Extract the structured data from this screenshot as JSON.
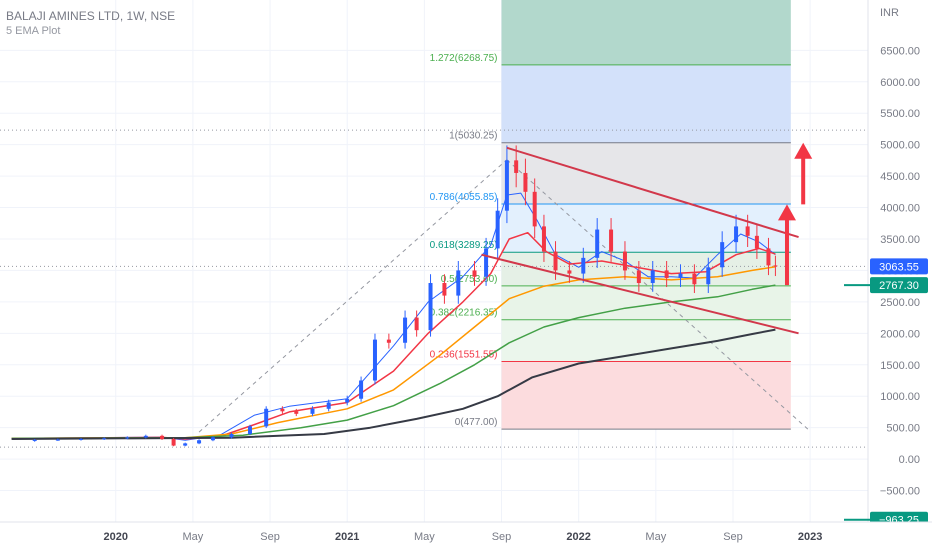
{
  "header": {
    "title": "BALAJI AMINES LTD, 1W, NSE",
    "indicator": "5 EMA Plot"
  },
  "chart_data": {
    "type": "candlestick",
    "y_axis": {
      "unit_label": "INR",
      "ticks": [
        "6500.00",
        "6000.00",
        "5500.00",
        "5000.00",
        "4500.00",
        "4000.00",
        "3500.00",
        "3000.00",
        "2500.00",
        "2000.00",
        "1500.00",
        "1000.00",
        "500.00",
        "0.00",
        "−500.00"
      ],
      "tick_values": [
        6500,
        6000,
        5500,
        5000,
        4500,
        4000,
        3500,
        3000,
        2500,
        2000,
        1500,
        1000,
        500,
        0,
        -500
      ],
      "range": [
        -1000,
        7300
      ]
    },
    "x_axis": {
      "labels": [
        "2020",
        "May",
        "Sep",
        "2021",
        "May",
        "Sep",
        "2022",
        "May",
        "Sep",
        "2023"
      ],
      "label_dates": [
        "2020-01",
        "2020-05",
        "2020-09",
        "2021-01",
        "2021-05",
        "2021-09",
        "2022-01",
        "2022-05",
        "2022-09",
        "2023-01"
      ],
      "range": [
        "2019-07",
        "2023-04"
      ]
    },
    "price_labels": [
      {
        "text": "3063.55",
        "value": 3063.55,
        "color": "#2962ff"
      },
      {
        "text": "2767.30",
        "value": 2767.3,
        "color": "#089981"
      },
      {
        "text": "−963.25",
        "value": -963.25,
        "color": "#089981"
      }
    ],
    "fibonacci": {
      "range_dates": [
        "2021-09",
        "2022-12"
      ],
      "levels": [
        {
          "label": "1.272(6268.75)",
          "ratio": 1.272,
          "value": 6268.75,
          "color": "#4caf50"
        },
        {
          "label": "1(5030.25)",
          "ratio": 1,
          "value": 5030.25,
          "color": "#787b86"
        },
        {
          "label": "0.786(4055.85)",
          "ratio": 0.786,
          "value": 4055.85,
          "color": "#2196f3"
        },
        {
          "label": "0.618(3289.25)",
          "ratio": 0.618,
          "value": 3289.25,
          "color": "#089981"
        },
        {
          "label": "0.5(2753.60)",
          "ratio": 0.5,
          "value": 2753.6,
          "color": "#4caf50"
        },
        {
          "label": "0.382(2216.35)",
          "ratio": 0.382,
          "value": 2216.35,
          "color": "#4caf50"
        },
        {
          "label": "0.236(1551.55)",
          "ratio": 0.236,
          "value": 1551.55,
          "color": "#f23645"
        },
        {
          "label": "0(477.00)",
          "ratio": 0,
          "value": 477,
          "color": "#787b86"
        }
      ],
      "zones": [
        {
          "from": 6268.75,
          "to": 7300,
          "color": "#b2d8cc"
        },
        {
          "from": 5030.25,
          "to": 6268.75,
          "color": "#d3e1fa"
        },
        {
          "from": 4055.85,
          "to": 5030.25,
          "color": "#e6e6e9"
        },
        {
          "from": 3289.25,
          "to": 4055.85,
          "color": "#e3f0fd"
        },
        {
          "from": 2753.6,
          "to": 3289.25,
          "color": "#e5f0e6"
        },
        {
          "from": 2216.35,
          "to": 2753.6,
          "color": "#e8f4e8"
        },
        {
          "from": 1551.55,
          "to": 2216.35,
          "color": "#ebf6ec"
        },
        {
          "from": 477,
          "to": 1551.55,
          "color": "#fcdcde"
        }
      ]
    },
    "closes": [
      [
        2019.55,
        290
      ],
      [
        2019.65,
        305
      ],
      [
        2019.75,
        310
      ],
      [
        2019.85,
        320
      ],
      [
        2019.95,
        330
      ],
      [
        2020.05,
        345
      ],
      [
        2020.13,
        370
      ],
      [
        2020.2,
        320
      ],
      [
        2020.25,
        215
      ],
      [
        2020.3,
        250
      ],
      [
        2020.36,
        300
      ],
      [
        2020.42,
        345
      ],
      [
        2020.5,
        400
      ],
      [
        2020.58,
        520
      ],
      [
        2020.65,
        800
      ],
      [
        2020.72,
        760
      ],
      [
        2020.78,
        720
      ],
      [
        2020.85,
        800
      ],
      [
        2020.92,
        900
      ],
      [
        2021.0,
        960
      ],
      [
        2021.06,
        1250
      ],
      [
        2021.12,
        1900
      ],
      [
        2021.18,
        1850
      ],
      [
        2021.25,
        2250
      ],
      [
        2021.3,
        2050
      ],
      [
        2021.36,
        2800
      ],
      [
        2021.42,
        2600
      ],
      [
        2021.48,
        3000
      ],
      [
        2021.55,
        2900
      ],
      [
        2021.6,
        3350
      ],
      [
        2021.65,
        3950
      ],
      [
        2021.69,
        4750
      ],
      [
        2021.73,
        4550
      ],
      [
        2021.77,
        4250
      ],
      [
        2021.81,
        3700
      ],
      [
        2021.85,
        3300
      ],
      [
        2021.9,
        3000
      ],
      [
        2021.96,
        2950
      ],
      [
        2022.02,
        3200
      ],
      [
        2022.08,
        3650
      ],
      [
        2022.14,
        3300
      ],
      [
        2022.2,
        3000
      ],
      [
        2022.26,
        2800
      ],
      [
        2022.32,
        3000
      ],
      [
        2022.38,
        2880
      ],
      [
        2022.44,
        2950
      ],
      [
        2022.5,
        2780
      ],
      [
        2022.56,
        3050
      ],
      [
        2022.62,
        3450
      ],
      [
        2022.68,
        3700
      ],
      [
        2022.73,
        3550
      ],
      [
        2022.77,
        3350
      ],
      [
        2022.82,
        3080
      ],
      [
        2022.85,
        3064
      ]
    ],
    "emas": [
      {
        "color": "#2962ff",
        "width": 1,
        "points": [
          [
            2019.55,
            330
          ],
          [
            2020.2,
            350
          ],
          [
            2020.3,
            300
          ],
          [
            2020.45,
            380
          ],
          [
            2020.6,
            700
          ],
          [
            2020.75,
            840
          ],
          [
            2021.0,
            960
          ],
          [
            2021.2,
            1800
          ],
          [
            2021.35,
            2500
          ],
          [
            2021.5,
            2900
          ],
          [
            2021.62,
            3400
          ],
          [
            2021.69,
            4200
          ],
          [
            2021.75,
            4230
          ],
          [
            2021.82,
            3800
          ],
          [
            2021.9,
            3250
          ],
          [
            2022.0,
            3050
          ],
          [
            2022.1,
            3300
          ],
          [
            2022.2,
            3150
          ],
          [
            2022.3,
            2900
          ],
          [
            2022.4,
            2900
          ],
          [
            2022.5,
            2880
          ],
          [
            2022.6,
            3250
          ],
          [
            2022.7,
            3580
          ],
          [
            2022.78,
            3450
          ],
          [
            2022.85,
            3250
          ]
        ]
      },
      {
        "color": "#f23645",
        "width": 1.5,
        "points": [
          [
            2019.55,
            330
          ],
          [
            2020.2,
            345
          ],
          [
            2020.3,
            320
          ],
          [
            2020.45,
            360
          ],
          [
            2020.6,
            550
          ],
          [
            2020.75,
            750
          ],
          [
            2021.0,
            900
          ],
          [
            2021.2,
            1400
          ],
          [
            2021.35,
            2000
          ],
          [
            2021.5,
            2500
          ],
          [
            2021.62,
            2950
          ],
          [
            2021.7,
            3500
          ],
          [
            2021.78,
            3600
          ],
          [
            2021.86,
            3300
          ],
          [
            2021.96,
            3100
          ],
          [
            2022.1,
            3150
          ],
          [
            2022.25,
            3050
          ],
          [
            2022.4,
            2950
          ],
          [
            2022.55,
            2980
          ],
          [
            2022.68,
            3250
          ],
          [
            2022.78,
            3350
          ],
          [
            2022.85,
            3260
          ]
        ]
      },
      {
        "color": "#ff9800",
        "width": 1.5,
        "points": [
          [
            2019.55,
            330
          ],
          [
            2020.3,
            340
          ],
          [
            2020.5,
            400
          ],
          [
            2020.7,
            580
          ],
          [
            2021.0,
            800
          ],
          [
            2021.2,
            1100
          ],
          [
            2021.4,
            1650
          ],
          [
            2021.55,
            2100
          ],
          [
            2021.7,
            2550
          ],
          [
            2021.85,
            2750
          ],
          [
            2022.0,
            2850
          ],
          [
            2022.2,
            2900
          ],
          [
            2022.4,
            2850
          ],
          [
            2022.6,
            2900
          ],
          [
            2022.75,
            3000
          ],
          [
            2022.85,
            3060
          ]
        ]
      },
      {
        "color": "#43a047",
        "width": 1.5,
        "points": [
          [
            2019.55,
            330
          ],
          [
            2020.3,
            340
          ],
          [
            2020.55,
            380
          ],
          [
            2020.8,
            500
          ],
          [
            2021.0,
            620
          ],
          [
            2021.2,
            850
          ],
          [
            2021.4,
            1200
          ],
          [
            2021.55,
            1500
          ],
          [
            2021.7,
            1850
          ],
          [
            2021.85,
            2100
          ],
          [
            2022.0,
            2250
          ],
          [
            2022.2,
            2400
          ],
          [
            2022.4,
            2500
          ],
          [
            2022.6,
            2580
          ],
          [
            2022.75,
            2700
          ],
          [
            2022.85,
            2767.3
          ]
        ]
      },
      {
        "color": "#363a45",
        "width": 2,
        "points": [
          [
            2019.55,
            320
          ],
          [
            2020.5,
            340
          ],
          [
            2020.9,
            400
          ],
          [
            2021.1,
            500
          ],
          [
            2021.3,
            640
          ],
          [
            2021.5,
            800
          ],
          [
            2021.65,
            1000
          ],
          [
            2021.8,
            1300
          ],
          [
            2022.0,
            1520
          ],
          [
            2022.2,
            1640
          ],
          [
            2022.4,
            1760
          ],
          [
            2022.6,
            1880
          ],
          [
            2022.75,
            1990
          ],
          [
            2022.85,
            2060
          ]
        ]
      }
    ],
    "trendlines": [
      {
        "color": "#d2384b",
        "width": 2,
        "from": [
          2021.69,
          4950
        ],
        "to": [
          2022.95,
          3530
        ]
      },
      {
        "color": "#d2384b",
        "width": 2,
        "from": [
          2021.58,
          3250
        ],
        "to": [
          2022.95,
          2000
        ]
      }
    ],
    "guides": [
      {
        "type": "dashed",
        "color": "#9598a1",
        "from": [
          2020.36,
          430
        ],
        "to": [
          2021.69,
          4760
        ]
      },
      {
        "type": "dashed",
        "color": "#9598a1",
        "from": [
          2021.69,
          4760
        ],
        "to": [
          2022.99,
          477
        ]
      },
      {
        "type": "dotted",
        "color": "#9598a1",
        "value": 5230
      },
      {
        "type": "dotted",
        "color": "#9598a1",
        "value": 3063.55
      },
      {
        "type": "dotted",
        "color": "#9598a1",
        "value": 190
      }
    ],
    "arrows": [
      {
        "color": "#f23645",
        "x": 2022.97,
        "from": 4050,
        "to": 5030
      },
      {
        "color": "#f23645",
        "x": 2022.9,
        "from": 2767,
        "to": 4050
      }
    ],
    "colors": {
      "up": "#2962ff",
      "down": "#f23645",
      "grid": "#f0f3fa",
      "axis_text": "#787b86"
    }
  }
}
